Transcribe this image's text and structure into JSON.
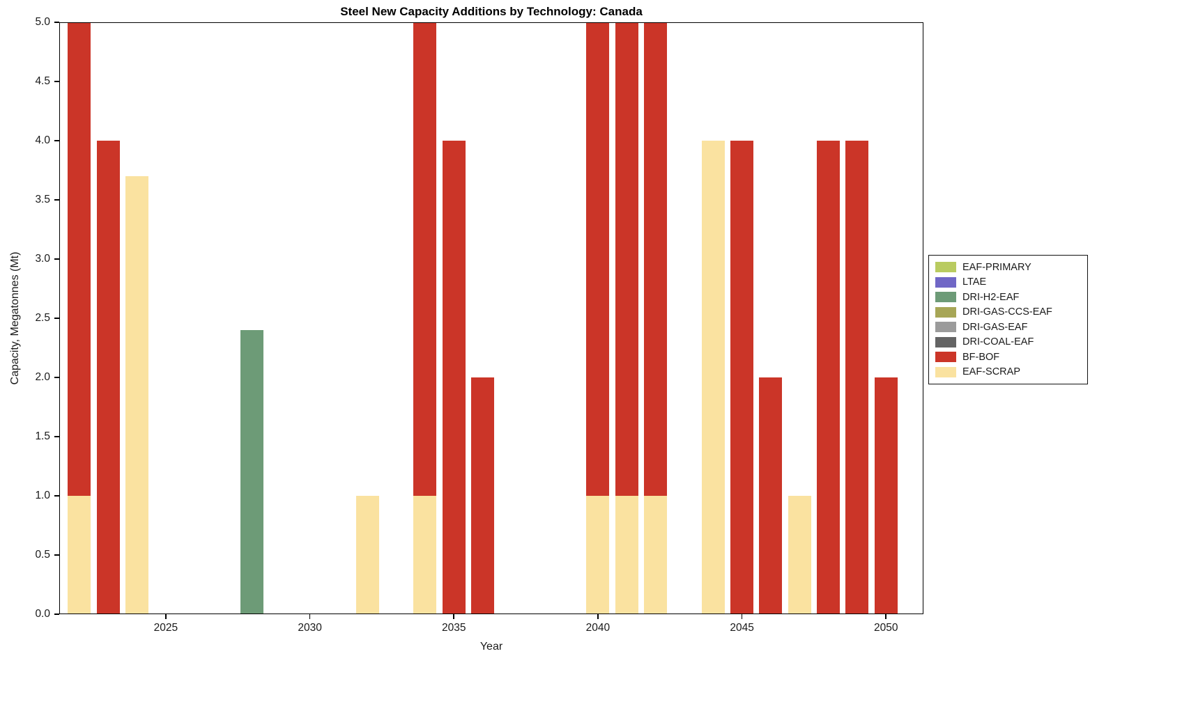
{
  "chart_data": {
    "type": "bar",
    "stacked": true,
    "title": "Steel New Capacity Additions by Technology: Canada",
    "xlabel": "Year",
    "ylabel": "Capacity, Megatonnes (Mt)",
    "xlim": [
      2021.3,
      2051.3
    ],
    "ylim": [
      0,
      5
    ],
    "bar_width_years": 0.8,
    "grid": false,
    "legend_position": "outside-right",
    "xticks": [
      {
        "v": 2025,
        "label": "2025"
      },
      {
        "v": 2030,
        "label": "2030"
      },
      {
        "v": 2035,
        "label": "2035"
      },
      {
        "v": 2040,
        "label": "2040"
      },
      {
        "v": 2045,
        "label": "2045"
      },
      {
        "v": 2050,
        "label": "2050"
      }
    ],
    "yticks": [
      {
        "v": 0.0,
        "label": "0.0"
      },
      {
        "v": 0.5,
        "label": "0.5"
      },
      {
        "v": 1.0,
        "label": "1.0"
      },
      {
        "v": 1.5,
        "label": "1.5"
      },
      {
        "v": 2.0,
        "label": "2.0"
      },
      {
        "v": 2.5,
        "label": "2.5"
      },
      {
        "v": 3.0,
        "label": "3.0"
      },
      {
        "v": 3.5,
        "label": "3.5"
      },
      {
        "v": 4.0,
        "label": "4.0"
      },
      {
        "v": 4.5,
        "label": "4.5"
      },
      {
        "v": 5.0,
        "label": "5.0"
      }
    ],
    "colors": {
      "EAF-PRIMARY": "#B9CB60",
      "LTAE": "#7067C6",
      "DRI-H2-EAF": "#6D9B77",
      "DRI-GAS-CCS-EAF": "#A7A656",
      "DRI-GAS-EAF": "#9B9B9B",
      "DRI-COAL-EAF": "#646464",
      "BF-BOF": "#CB3528",
      "EAF-SCRAP": "#FAE2A0"
    },
    "legend_entries": [
      "EAF-PRIMARY",
      "LTAE",
      "DRI-H2-EAF",
      "DRI-GAS-CCS-EAF",
      "DRI-GAS-EAF",
      "DRI-COAL-EAF",
      "BF-BOF",
      "EAF-SCRAP"
    ],
    "bars": [
      {
        "x": 2022,
        "segments": [
          {
            "series": "EAF-SCRAP",
            "value": 1.0
          },
          {
            "series": "BF-BOF",
            "value": 4.0
          }
        ]
      },
      {
        "x": 2023,
        "segments": [
          {
            "series": "BF-BOF",
            "value": 4.0
          }
        ]
      },
      {
        "x": 2024,
        "segments": [
          {
            "series": "EAF-SCRAP",
            "value": 3.7
          }
        ]
      },
      {
        "x": 2028,
        "segments": [
          {
            "series": "DRI-H2-EAF",
            "value": 2.4
          }
        ]
      },
      {
        "x": 2032,
        "segments": [
          {
            "series": "EAF-SCRAP",
            "value": 1.0
          }
        ]
      },
      {
        "x": 2034,
        "segments": [
          {
            "series": "EAF-SCRAP",
            "value": 1.0
          },
          {
            "series": "BF-BOF",
            "value": 4.0
          }
        ]
      },
      {
        "x": 2035,
        "segments": [
          {
            "series": "BF-BOF",
            "value": 4.0
          }
        ]
      },
      {
        "x": 2036,
        "segments": [
          {
            "series": "BF-BOF",
            "value": 2.0
          }
        ]
      },
      {
        "x": 2040,
        "segments": [
          {
            "series": "EAF-SCRAP",
            "value": 1.0
          },
          {
            "series": "BF-BOF",
            "value": 4.0
          }
        ]
      },
      {
        "x": 2041,
        "segments": [
          {
            "series": "EAF-SCRAP",
            "value": 1.0
          },
          {
            "series": "BF-BOF",
            "value": 4.0
          }
        ]
      },
      {
        "x": 2042,
        "segments": [
          {
            "series": "EAF-SCRAP",
            "value": 1.0
          },
          {
            "series": "BF-BOF",
            "value": 4.0
          }
        ]
      },
      {
        "x": 2044,
        "segments": [
          {
            "series": "EAF-SCRAP",
            "value": 4.0
          }
        ]
      },
      {
        "x": 2045,
        "segments": [
          {
            "series": "BF-BOF",
            "value": 4.0
          }
        ]
      },
      {
        "x": 2046,
        "segments": [
          {
            "series": "BF-BOF",
            "value": 2.0
          }
        ]
      },
      {
        "x": 2047,
        "segments": [
          {
            "series": "EAF-SCRAP",
            "value": 1.0
          }
        ]
      },
      {
        "x": 2048,
        "segments": [
          {
            "series": "BF-BOF",
            "value": 4.0
          }
        ]
      },
      {
        "x": 2049,
        "segments": [
          {
            "series": "BF-BOF",
            "value": 4.0
          }
        ]
      },
      {
        "x": 2050,
        "segments": [
          {
            "series": "BF-BOF",
            "value": 2.0
          }
        ]
      }
    ]
  }
}
